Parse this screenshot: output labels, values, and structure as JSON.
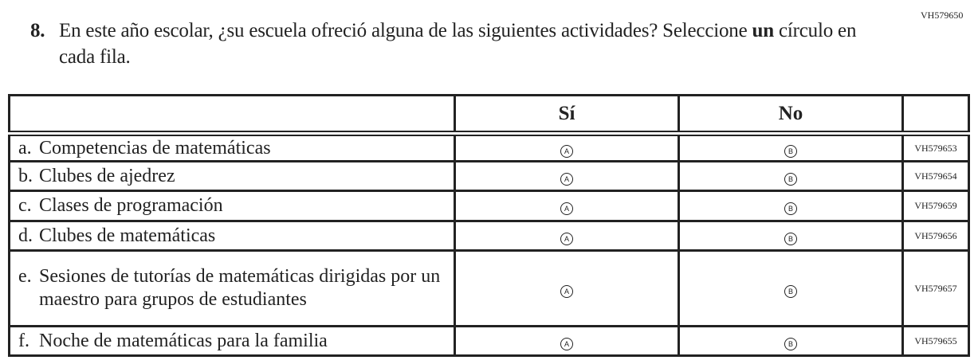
{
  "item_code": "VH579650",
  "question": {
    "number": "8.",
    "text_before": "En este año escolar, ¿su escuela ofreció alguna de las siguientes actividades? Seleccione ",
    "bold": "un",
    "text_after": " círculo en cada fila."
  },
  "columns": {
    "yes": "Sí",
    "no": "No"
  },
  "rows": [
    {
      "letter": "a.",
      "label": "Competencias de matemáticas",
      "a": "A",
      "b": "B",
      "code": "VH579653"
    },
    {
      "letter": "b.",
      "label": "Clubes de ajedrez",
      "a": "A",
      "b": "B",
      "code": "VH579654"
    },
    {
      "letter": "c.",
      "label": "Clases de programación",
      "a": "A",
      "b": "B",
      "code": "VH579659"
    },
    {
      "letter": "d.",
      "label": "Clubes de matemáticas",
      "a": "A",
      "b": "B",
      "code": "VH579656"
    },
    {
      "letter": "e.",
      "label": "Sesiones de tutorías de matemáticas dirigidas por un maestro para grupos de estudiantes",
      "a": "A",
      "b": "B",
      "code": "VH579657"
    },
    {
      "letter": "f.",
      "label": "Noche de matemáticas para la familia",
      "a": "A",
      "b": "B",
      "code": "VH579655"
    }
  ]
}
